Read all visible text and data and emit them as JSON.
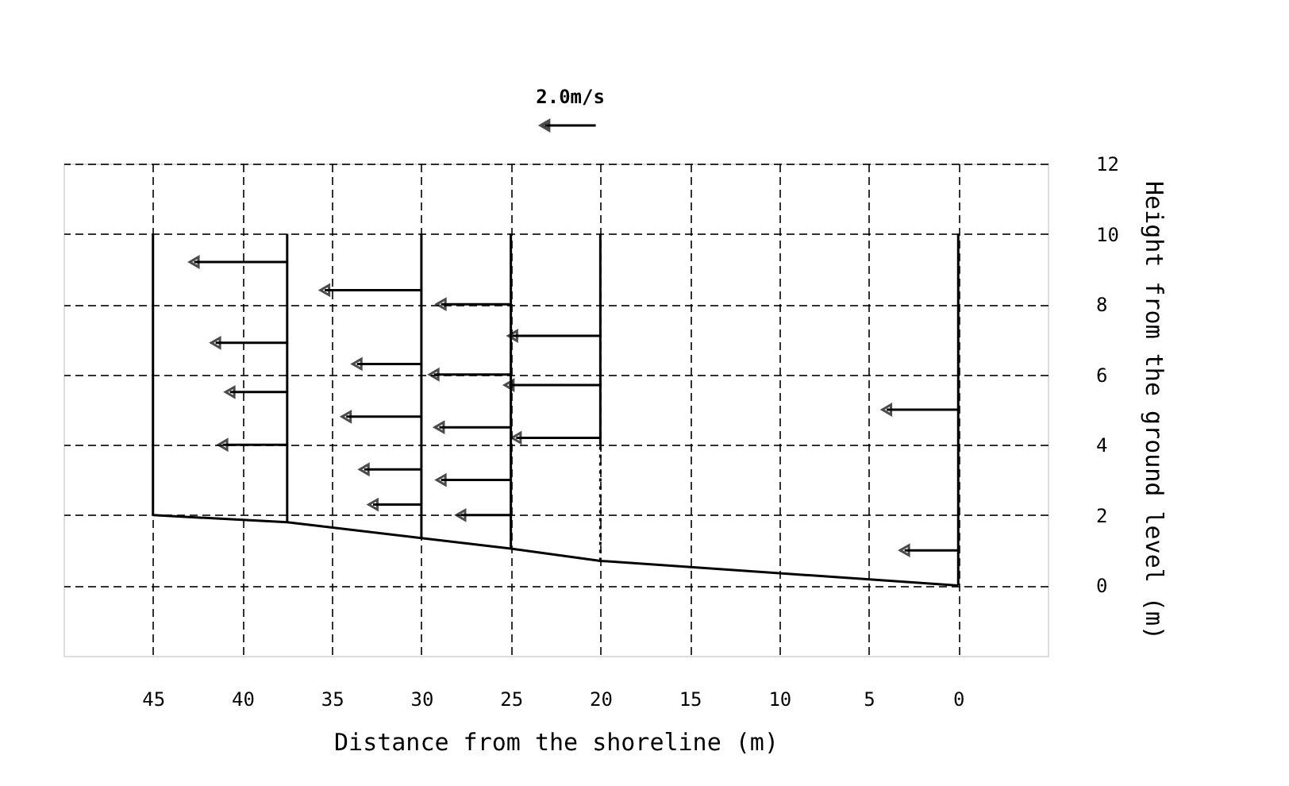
{
  "chart_data": {
    "type": "line",
    "xlabel": "Distance from the shoreline (m)",
    "ylabel": "Height from the ground level (m)",
    "annotations": [
      "2.0m/s"
    ],
    "xlim": [
      50,
      -5
    ],
    "xticks": [
      45,
      40,
      35,
      30,
      25,
      20,
      15,
      10,
      5,
      0
    ],
    "ylim": [
      -2,
      12
    ],
    "yticks": [
      0,
      2,
      4,
      6,
      8,
      10,
      12
    ],
    "grid": true,
    "line_style": "solid",
    "marker": "none",
    "series": [
      {
        "color": "#000000",
        "x": [
          45,
          37.5,
          30,
          25,
          20,
          0
        ],
        "values": [
          2.0,
          1.8,
          1.35,
          1.05,
          0.7,
          0
        ]
      },
      {
        "color": "#000000",
        "x": [
          45,
          45
        ],
        "values": [
          2.0,
          10
        ]
      },
      {
        "color": "#000000",
        "x": [
          37.5,
          37.5
        ],
        "values": [
          1.8,
          10
        ]
      },
      {
        "color": "#000000",
        "x": [
          30,
          30
        ],
        "values": [
          1.35,
          10
        ]
      },
      {
        "color": "#000000",
        "x": [
          25,
          25
        ],
        "values": [
          1.05,
          10
        ]
      },
      {
        "color": "#000000",
        "x": [
          20,
          20
        ],
        "values": [
          4,
          10
        ]
      },
      {
        "color": "#000000",
        "x": [
          20,
          20
        ],
        "values": [
          0.7,
          4
        ],
        "line_style": "dotted"
      },
      {
        "color": "#000000",
        "x": [
          0,
          0
        ],
        "values": [
          0,
          10
        ]
      },
      {
        "color": "#000000",
        "x": [
          37.5,
          42.7
        ],
        "values": [
          9.2,
          9.2
        ],
        "marker": "triangle"
      },
      {
        "color": "#000000",
        "x": [
          37.5,
          41.5
        ],
        "values": [
          6.9,
          6.9
        ],
        "marker": "triangle"
      },
      {
        "color": "#000000",
        "x": [
          37.5,
          40.7
        ],
        "values": [
          5.5,
          5.5
        ],
        "marker": "triangle"
      },
      {
        "color": "#000000",
        "x": [
          37.5,
          41.1
        ],
        "values": [
          4.0,
          4.0
        ],
        "marker": "triangle"
      },
      {
        "color": "#000000",
        "x": [
          30,
          35.4
        ],
        "values": [
          8.4,
          8.4
        ],
        "marker": "triangle"
      },
      {
        "color": "#000000",
        "x": [
          30,
          33.6
        ],
        "values": [
          6.3,
          6.3
        ],
        "marker": "triangle"
      },
      {
        "color": "#000000",
        "x": [
          30,
          34.2
        ],
        "values": [
          4.8,
          4.8
        ],
        "marker": "triangle"
      },
      {
        "color": "#000000",
        "x": [
          30,
          33.2
        ],
        "values": [
          3.3,
          3.3
        ],
        "marker": "triangle"
      },
      {
        "color": "#000000",
        "x": [
          30,
          32.7
        ],
        "values": [
          2.3,
          2.3
        ],
        "marker": "triangle"
      },
      {
        "color": "#000000",
        "x": [
          25,
          28.9
        ],
        "values": [
          8.0,
          8.0
        ],
        "marker": "triangle"
      },
      {
        "color": "#000000",
        "x": [
          25,
          29.3
        ],
        "values": [
          6.0,
          6.0
        ],
        "marker": "triangle"
      },
      {
        "color": "#000000",
        "x": [
          25,
          29.0
        ],
        "values": [
          4.5,
          4.5
        ],
        "marker": "triangle"
      },
      {
        "color": "#000000",
        "x": [
          25,
          28.9
        ],
        "values": [
          3.0,
          3.0
        ],
        "marker": "triangle"
      },
      {
        "color": "#000000",
        "x": [
          25,
          27.8
        ],
        "values": [
          2.0,
          2.0
        ],
        "marker": "triangle"
      },
      {
        "color": "#000000",
        "x": [
          20,
          24.9
        ],
        "values": [
          7.1,
          7.1
        ],
        "marker": "triangle"
      },
      {
        "color": "#000000",
        "x": [
          20,
          25.1
        ],
        "values": [
          5.7,
          5.7
        ],
        "marker": "triangle"
      },
      {
        "color": "#000000",
        "x": [
          20,
          24.7
        ],
        "values": [
          4.2,
          4.2
        ],
        "marker": "triangle"
      },
      {
        "color": "#000000",
        "x": [
          0,
          4.0
        ],
        "values": [
          5.0,
          5.0
        ],
        "marker": "triangle"
      },
      {
        "color": "#000000",
        "x": [
          0,
          3.0
        ],
        "values": [
          1.0,
          1.0
        ],
        "marker": "triangle"
      }
    ]
  }
}
